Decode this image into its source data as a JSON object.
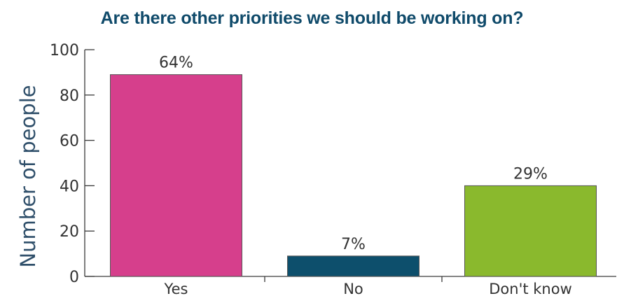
{
  "chart_data": {
    "type": "bar",
    "title": "Are there other priorities we should be working on?",
    "xlabel": "",
    "ylabel": "Number of people",
    "ylim": [
      0,
      100
    ],
    "yticks": [
      0,
      20,
      40,
      60,
      80,
      100
    ],
    "categories": [
      "Yes",
      "No",
      "Don't know"
    ],
    "values": [
      89,
      9,
      40
    ],
    "data_labels": [
      "64%",
      "7%",
      "29%"
    ],
    "bar_colors": [
      "#d63f8c",
      "#0d4f6c",
      "#8ab92d"
    ],
    "grid": false,
    "legend": "none"
  },
  "colors": {
    "title": "#0f4a6a",
    "axis": "#3a3a3a",
    "bar_border": "#555555"
  }
}
